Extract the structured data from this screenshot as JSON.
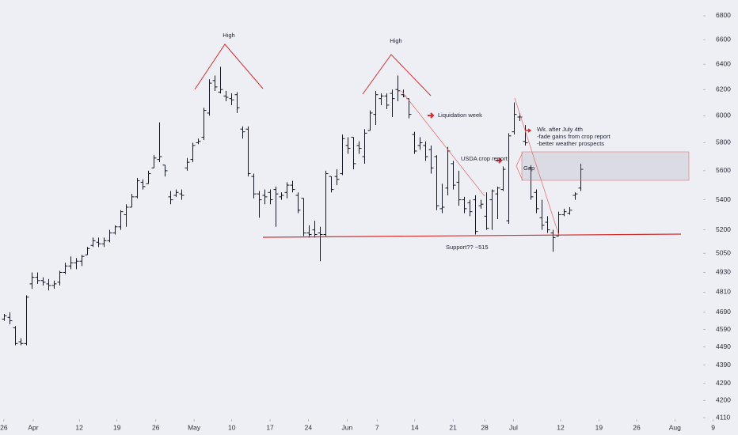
{
  "chart_data": {
    "type": "ohlc",
    "color": "#131722",
    "log_scale": true,
    "open": [
      4650,
      4660,
      4600,
      4520,
      4510,
      4860,
      4900,
      4880,
      4860,
      4850,
      4870,
      4930,
      4970,
      4990,
      5000,
      5040,
      5100,
      5120,
      5110,
      5130,
      5180,
      5220,
      5300,
      5350,
      5420,
      5520,
      5510,
      5620,
      5680,
      5640,
      5420,
      5430,
      5440,
      5620,
      5680,
      5800,
      5840,
      6020,
      6270,
      6180,
      6150,
      6130,
      6160,
      5900,
      5900,
      5560,
      5440,
      5430,
      5450,
      5470,
      5420,
      5450,
      5500,
      5430,
      5410,
      5180,
      5200,
      5180,
      5170,
      5560,
      5560,
      5580,
      5780,
      5840,
      5780,
      5700,
      5890,
      6010,
      6130,
      6150,
      6170,
      6200,
      6160,
      6130,
      5860,
      5780,
      5780,
      5750,
      5700,
      5340,
      5480,
      5650,
      5520,
      5400,
      5380,
      5400,
      5360,
      5290,
      5400,
      5440,
      5470,
      5260,
      5880,
      5990,
      5810,
      5620,
      5450,
      5280,
      5250,
      5180,
      5160,
      5300,
      5310,
      5430,
      5480
    ],
    "high": [
      4680,
      4690,
      4610,
      4540,
      4790,
      4930,
      4930,
      4900,
      4890,
      4880,
      4940,
      4990,
      5030,
      5020,
      5040,
      5090,
      5150,
      5150,
      5150,
      5200,
      5230,
      5330,
      5370,
      5440,
      5550,
      5540,
      5600,
      5710,
      5950,
      5640,
      5460,
      5470,
      5470,
      5690,
      5800,
      5830,
      6060,
      6280,
      6310,
      6380,
      6190,
      6170,
      6180,
      5920,
      5920,
      5580,
      5460,
      5470,
      5470,
      5490,
      5450,
      5520,
      5530,
      5450,
      5410,
      5230,
      5260,
      5220,
      5600,
      5560,
      5610,
      5860,
      5840,
      5840,
      5810,
      5900,
      6040,
      6190,
      6170,
      6170,
      6200,
      6310,
      6200,
      6130,
      5880,
      5840,
      5810,
      5780,
      5710,
      5510,
      5770,
      5670,
      5600,
      5420,
      5400,
      5430,
      5400,
      5450,
      5470,
      5490,
      5630,
      5870,
      6100,
      6020,
      5930,
      5640,
      5470,
      5400,
      5290,
      5200,
      5320,
      5340,
      5350,
      5450,
      5650
    ],
    "low": [
      4640,
      4620,
      4500,
      4500,
      4500,
      4830,
      4860,
      4850,
      4820,
      4830,
      4850,
      4920,
      4950,
      4950,
      4970,
      5040,
      5090,
      5090,
      5090,
      5120,
      5170,
      5200,
      5220,
      5350,
      5410,
      5470,
      5510,
      5620,
      5660,
      5560,
      5370,
      5420,
      5400,
      5600,
      5660,
      5790,
      5820,
      6000,
      6190,
      6170,
      6110,
      6080,
      6020,
      5830,
      5560,
      5410,
      5280,
      5370,
      5370,
      5220,
      5400,
      5410,
      5450,
      5310,
      5160,
      5150,
      5150,
      5000,
      5160,
      5450,
      5500,
      5570,
      5720,
      5610,
      5720,
      5650,
      5890,
      5930,
      6080,
      6050,
      5990,
      6110,
      6140,
      5980,
      5720,
      5750,
      5670,
      5580,
      5330,
      5310,
      5430,
      5470,
      5360,
      5310,
      5290,
      5170,
      5340,
      5200,
      5200,
      5270,
      5460,
      5240,
      5860,
      5960,
      5780,
      5400,
      5310,
      5200,
      5180,
      5060,
      5160,
      5290,
      5300,
      5400,
      5460
    ],
    "close": [
      4670,
      4640,
      4510,
      4510,
      4780,
      4900,
      4880,
      4870,
      4850,
      4860,
      4930,
      4970,
      4990,
      5000,
      5030,
      5080,
      5130,
      5110,
      5130,
      5180,
      5220,
      5320,
      5350,
      5420,
      5530,
      5490,
      5580,
      5690,
      5700,
      5600,
      5400,
      5450,
      5430,
      5660,
      5780,
      5810,
      6040,
      6250,
      6220,
      6200,
      6140,
      6120,
      6060,
      5880,
      5580,
      5440,
      5400,
      5420,
      5400,
      5440,
      5430,
      5500,
      5470,
      5330,
      5180,
      5170,
      5170,
      5170,
      5580,
      5470,
      5540,
      5830,
      5760,
      5650,
      5760,
      5870,
      6020,
      6160,
      6150,
      6080,
      6130,
      6190,
      6150,
      6010,
      5740,
      5800,
      5700,
      5620,
      5360,
      5350,
      5740,
      5500,
      5400,
      5340,
      5320,
      5190,
      5370,
      5210,
      5460,
      5480,
      5610,
      5850,
      6010,
      5990,
      5800,
      5420,
      5340,
      5230,
      5200,
      5150,
      5300,
      5320,
      5330,
      5440,
      5610
    ],
    "xlim": [
      -0.7,
      126.1
    ],
    "xticks": [
      {
        "value": 0,
        "label": "26"
      },
      {
        "value": 5.3,
        "label": "Apr"
      },
      {
        "value": 13.6,
        "label": "12"
      },
      {
        "value": 20.4,
        "label": "19"
      },
      {
        "value": 27.4,
        "label": "26"
      },
      {
        "value": 34.3,
        "label": "May"
      },
      {
        "value": 41.1,
        "label": "10"
      },
      {
        "value": 48,
        "label": "17"
      },
      {
        "value": 54.9,
        "label": "24"
      },
      {
        "value": 61.9,
        "label": "Jun"
      },
      {
        "value": 67.3,
        "label": "7"
      },
      {
        "value": 74.1,
        "label": "14"
      },
      {
        "value": 81,
        "label": "21"
      },
      {
        "value": 86.7,
        "label": "28"
      },
      {
        "value": 91.9,
        "label": "Jul"
      },
      {
        "value": 100.4,
        "label": "12"
      },
      {
        "value": 107.3,
        "label": "19"
      },
      {
        "value": 114.1,
        "label": "26"
      },
      {
        "value": 121,
        "label": "Aug"
      },
      {
        "value": 127.9,
        "label": "9"
      }
    ],
    "ylim": [
      4102,
      6936
    ],
    "yticks": [
      4110,
      4200,
      4290,
      4390,
      4490,
      4590,
      4690,
      4810,
      4930,
      5050,
      5200,
      5400,
      5600,
      5800,
      6000,
      6200,
      6400,
      6600,
      6800
    ],
    "annotations": [
      "High",
      "High",
      "Liquidation week",
      "USDA crop report",
      "Wk. after July 4th",
      "-fade gains from crop report",
      "-better weather prospects",
      "Gap",
      "Support?? ~515"
    ]
  }
}
